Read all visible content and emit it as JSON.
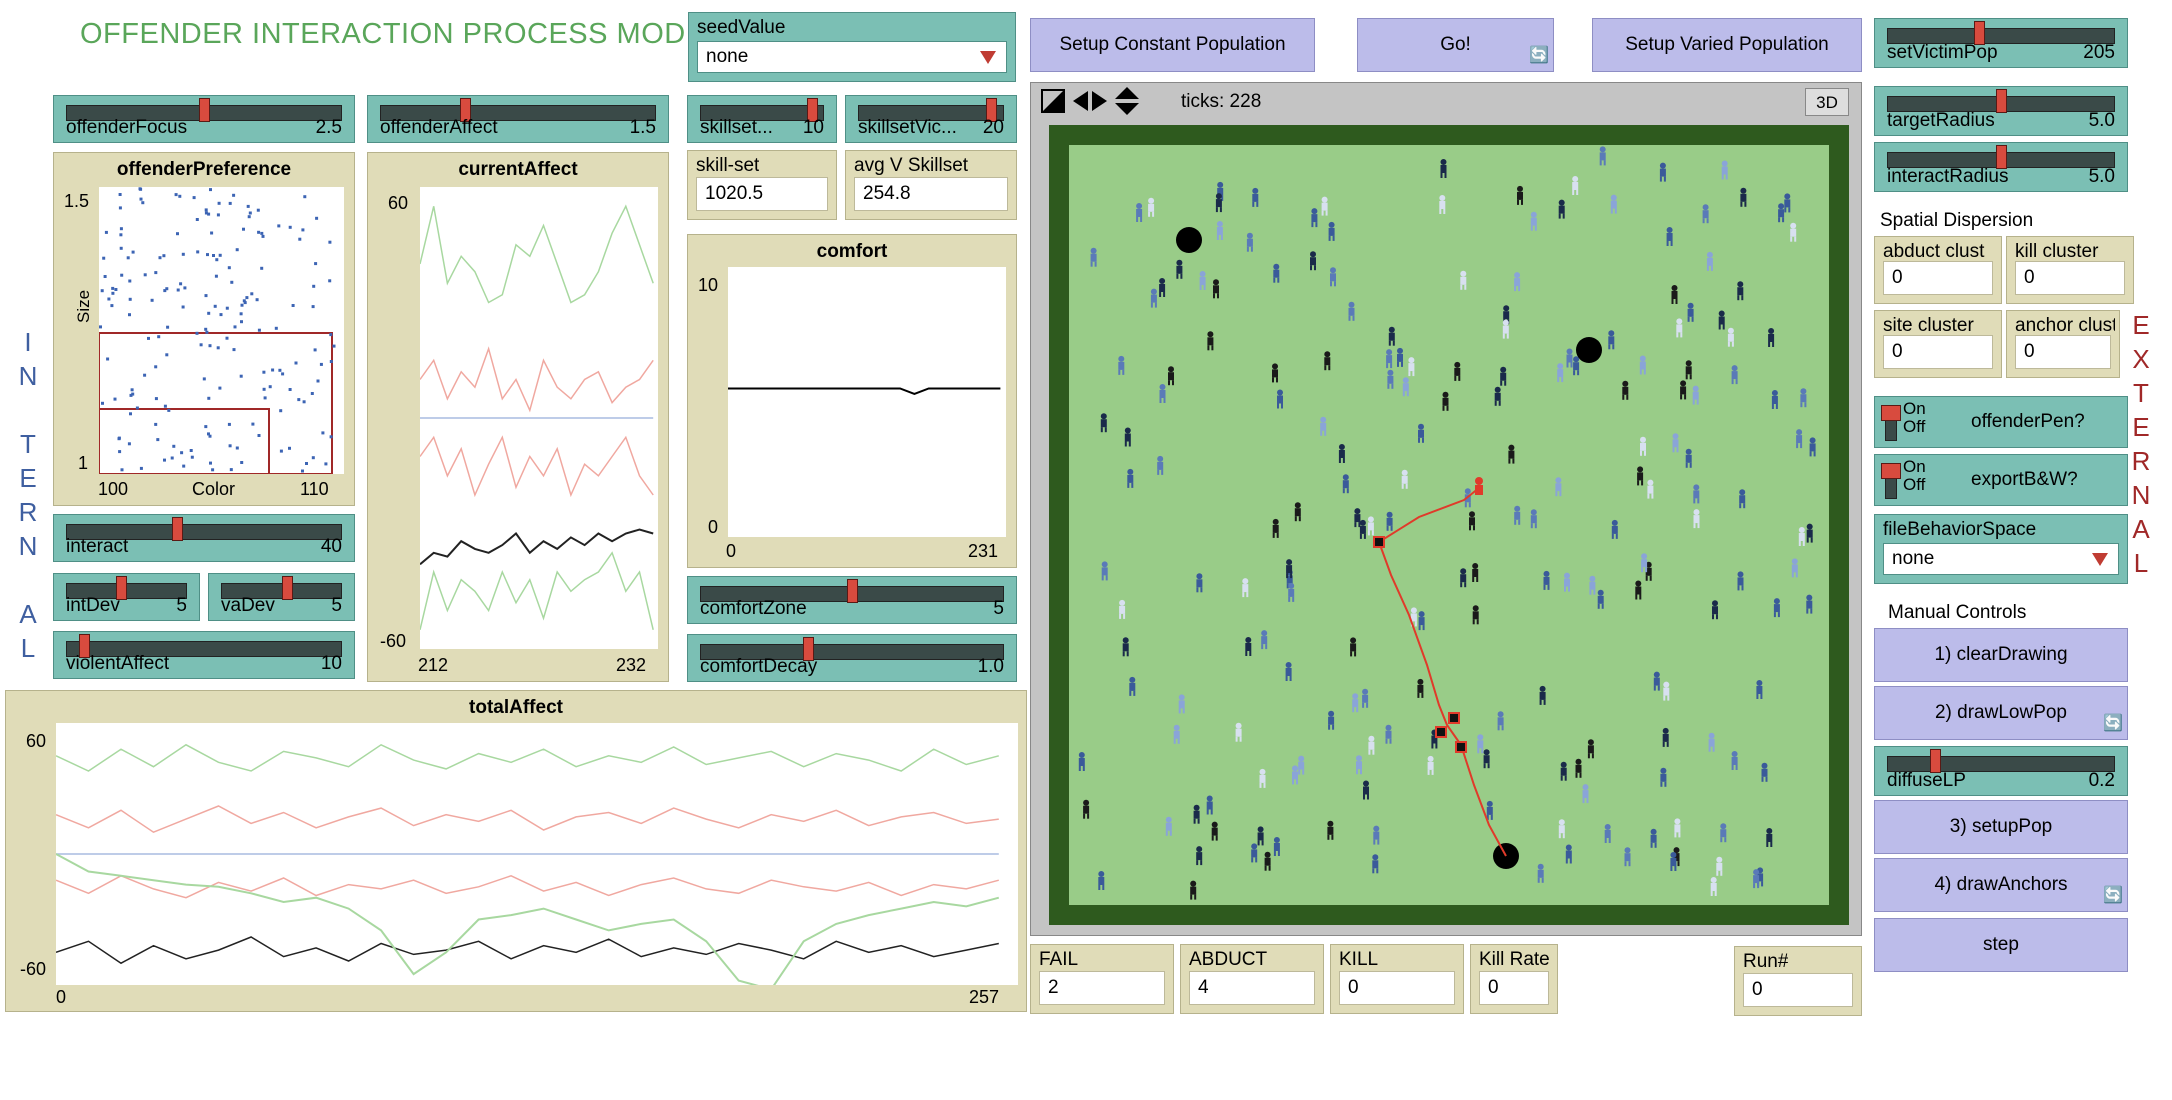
{
  "app_title": "OFFENDER INTERACTION PROCESS MODEL",
  "side_labels": {
    "internal": [
      "I",
      "N",
      "",
      "T",
      "E",
      "R",
      "N",
      "",
      "A",
      "L"
    ],
    "external": [
      "E",
      "X",
      "T",
      "E",
      "R",
      "N",
      "A",
      "L"
    ]
  },
  "colors": {
    "slider": "#7bbfb4",
    "monitor": "#e0dcb8",
    "button": "#bcbcea",
    "world": "#99cc88",
    "title": "#5aa65a",
    "internal_text": "#3f5fa0",
    "external_text": "#a02828"
  },
  "sliders": {
    "offenderFocus": {
      "label": "offenderFocus",
      "value": "2.5",
      "fraction": 0.5
    },
    "offenderAffect": {
      "label": "offenderAffect",
      "value": "1.5",
      "fraction": 0.3
    },
    "skillsetOff": {
      "label": "skillset... ",
      "value": "10",
      "fraction": 0.95
    },
    "skillsetVic": {
      "label": "skillsetVic...",
      "value": "20",
      "fraction": 0.95
    },
    "interact": {
      "label": "interact",
      "value": "40",
      "fraction": 0.4
    },
    "intDev": {
      "label": "intDev",
      "value": "5",
      "fraction": 0.45
    },
    "vaDev": {
      "label": "vaDev",
      "value": "5",
      "fraction": 0.55
    },
    "violentAffect": {
      "label": "violentAffect",
      "value": "10",
      "fraction": 0.05
    },
    "comfortZone": {
      "label": "comfortZone",
      "value": "5",
      "fraction": 0.5
    },
    "comfortDecay": {
      "label": "comfortDecay",
      "value": "1.0",
      "fraction": 0.35
    },
    "setVictimPop": {
      "label": "setVictimPop",
      "value": "205",
      "fraction": 0.4
    },
    "targetRadius": {
      "label": "targetRadius",
      "value": "5.0",
      "fraction": 0.5
    },
    "interactRadius": {
      "label": "interactRadius",
      "value": "5.0",
      "fraction": 0.5
    },
    "diffuseLP": {
      "label": "diffuseLP",
      "value": "0.2",
      "fraction": 0.2
    }
  },
  "choosers": {
    "seedValue": {
      "label": "seedValue",
      "selected": "none"
    },
    "fileBehaviorSpace": {
      "label": "fileBehaviorSpace",
      "selected": "none"
    }
  },
  "monitors": {
    "skillset": {
      "label": "skill-set",
      "value": "1020.5"
    },
    "avgVSkillset": {
      "label": "avg V Skillset",
      "value": "254.8"
    },
    "abductCluster": {
      "label": "abduct clust",
      "value": "0"
    },
    "killCluster": {
      "label": "kill cluster",
      "value": "0"
    },
    "siteCluster": {
      "label": "site cluster",
      "value": "0"
    },
    "anchorCluster": {
      "label": "anchor clust",
      "value": "0"
    },
    "fail": {
      "label": "FAIL",
      "value": "2"
    },
    "abduct": {
      "label": "ABDUCT",
      "value": "4"
    },
    "kill": {
      "label": "KILL",
      "value": "0"
    },
    "killRate": {
      "label": "Kill Rate",
      "value": "0"
    },
    "runNum": {
      "label": "Run#",
      "value": "0"
    }
  },
  "buttons": {
    "setupConstant": "Setup Constant Population",
    "go": "Go!",
    "setupVaried": "Setup Varied Population",
    "clearDrawing": "1) clearDrawing",
    "drawLowPop": "2) drawLowPop",
    "setupPop": "3) setupPop",
    "drawAnchors": "4) drawAnchors",
    "step": "step"
  },
  "switches": {
    "offenderPen": {
      "label": "offenderPen?",
      "on": "On",
      "off": "Off"
    },
    "exportBW": {
      "label": "exportB&W?",
      "on": "On",
      "off": "Off"
    }
  },
  "notes": {
    "spatial": "Spatial Dispersion",
    "manual": "Manual Controls"
  },
  "world": {
    "ticks": "ticks: 228",
    "view3d": "3D"
  },
  "plots": {
    "offenderPreference": {
      "title": "offenderPreference",
      "ymax": "1.5",
      "ymin": "1",
      "xmin": "100",
      "xmax": "110",
      "xlabel": "Color",
      "ylabel": "Size"
    },
    "currentAffect": {
      "title": "currentAffect",
      "ymax": "60",
      "ymin": "-60",
      "xmin": "212",
      "xmax": "232"
    },
    "comfort": {
      "title": "comfort",
      "ymax": "10",
      "ymin": "0",
      "xmin": "0",
      "xmax": "231"
    },
    "totalAffect": {
      "title": "totalAffect",
      "ymax": "60",
      "ymin": "-60",
      "xmin": "0",
      "xmax": "257"
    }
  },
  "chart_data": [
    {
      "type": "scatter",
      "title": "offenderPreference",
      "xlabel": "Color",
      "ylabel": "Size",
      "xlim": [
        100,
        110
      ],
      "ylim": [
        1,
        1.5
      ],
      "grid": false
    },
    {
      "type": "line",
      "title": "currentAffect",
      "x_range": [
        212,
        232
      ],
      "ylim": [
        -60,
        60
      ],
      "series": [
        {
          "values": [
            40,
            55,
            35,
            42,
            38,
            30,
            32,
            45,
            42,
            50,
            40,
            30,
            32,
            38,
            48,
            55,
            45,
            35
          ]
        },
        {
          "values": [
            10,
            15,
            5,
            12,
            8,
            18,
            5,
            10,
            2,
            15,
            8,
            5,
            10,
            12,
            4,
            8,
            10,
            15
          ]
        },
        {
          "values": [
            0,
            0,
            0,
            0,
            0,
            0,
            0,
            0,
            0,
            0,
            0,
            0,
            0,
            0,
            0,
            0,
            0,
            0
          ]
        },
        {
          "values": [
            -10,
            -5,
            -15,
            -8,
            -20,
            -12,
            -5,
            -18,
            -10,
            -15,
            -8,
            -20,
            -12,
            -15,
            -10,
            -5,
            -15,
            -20
          ]
        },
        {
          "values": [
            -38,
            -35,
            -36,
            -32,
            -34,
            -35,
            -33,
            -30,
            -35,
            -32,
            -34,
            -31,
            -33,
            -30,
            -32,
            -30,
            -29,
            -30
          ]
        },
        {
          "values": [
            -55,
            -40,
            -50,
            -42,
            -45,
            -50,
            -40,
            -48,
            -42,
            -52,
            -40,
            -45,
            -42,
            -40,
            -35,
            -45,
            -40,
            -55
          ]
        }
      ]
    },
    {
      "type": "line",
      "title": "comfort",
      "x_range": [
        0,
        231
      ],
      "ylim": [
        0,
        10
      ],
      "series": [
        {
          "values": [
            5.5,
            5.5,
            5.5,
            5.5,
            5.5,
            5.5,
            5.5,
            5.5,
            5.5,
            5.5,
            5.5,
            5.5,
            5.5,
            5.3,
            5.5,
            5.5,
            5.5,
            5.5,
            5.5,
            5.5
          ]
        }
      ]
    },
    {
      "type": "line",
      "title": "totalAffect",
      "x_range": [
        0,
        257
      ],
      "ylim": [
        -60,
        60
      ],
      "series": [
        {
          "values": [
            45,
            38,
            48,
            40,
            50,
            42,
            38,
            47,
            44,
            40,
            50,
            43,
            39,
            46,
            42,
            48,
            40,
            45,
            42,
            49,
            41,
            44,
            47,
            40,
            46,
            43,
            38,
            48,
            41,
            45
          ]
        },
        {
          "values": [
            18,
            12,
            20,
            10,
            16,
            22,
            14,
            19,
            12,
            17,
            21,
            13,
            18,
            15,
            20,
            11,
            17,
            19,
            14,
            21,
            16,
            12,
            18,
            15,
            20,
            13,
            17,
            19,
            14,
            16
          ]
        },
        {
          "values": [
            0,
            0,
            0,
            0,
            0,
            0,
            0,
            0,
            0,
            0,
            0,
            0,
            0,
            0,
            0,
            0,
            0,
            0,
            0,
            0,
            0,
            0,
            0,
            0,
            0,
            0,
            0,
            0,
            0,
            0
          ]
        },
        {
          "values": [
            -12,
            -18,
            -10,
            -16,
            -20,
            -13,
            -17,
            -11,
            -19,
            -14,
            -16,
            -12,
            -18,
            -15,
            -10,
            -17,
            -13,
            -19,
            -14,
            -11,
            -16,
            -18,
            -12,
            -15,
            -17,
            -13,
            -19,
            -14,
            -16,
            -12
          ]
        },
        {
          "values": [
            -45,
            -40,
            -50,
            -42,
            -48,
            -44,
            -38,
            -47,
            -43,
            -49,
            -41,
            -46,
            -44,
            -40,
            -48,
            -42,
            -45,
            -39,
            -47,
            -43,
            -46,
            -41,
            -44,
            -48,
            -40,
            -45,
            -42,
            -47,
            -44,
            -41
          ]
        },
        {
          "values": [
            0,
            -8,
            -10,
            -12,
            -14,
            -15,
            -18,
            -22,
            -20,
            -25,
            -35,
            -55,
            -45,
            -30,
            -28,
            -25,
            -30,
            -35,
            -32,
            -30,
            -40,
            -58,
            -62,
            -40,
            -32,
            -28,
            -25,
            -22,
            -24,
            -20
          ]
        }
      ]
    }
  ]
}
